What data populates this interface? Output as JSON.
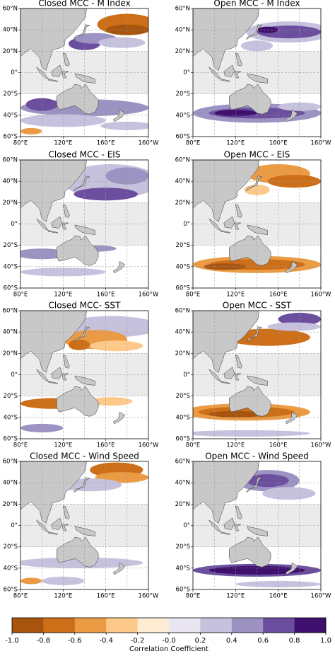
{
  "panels": [
    {
      "title": "Closed MCC - M Index"
    },
    {
      "title": "Open MCC - M Index"
    },
    {
      "title": "Closed MCC - EIS"
    },
    {
      "title": "Open MCC - EIS"
    },
    {
      "title": "Closed MCC- SST"
    },
    {
      "title": "Open MCC - SST"
    },
    {
      "title": "Closed MCC - Wind Speed"
    },
    {
      "title": "Open MCC - Wind Speed"
    }
  ],
  "map_axes": {
    "lat_labels": [
      "60°N",
      "40°N",
      "20°N",
      "0°",
      "20°S",
      "40°S",
      "60°S"
    ],
    "lon_labels": [
      "80°E",
      "120°E",
      "160°E",
      "160°W"
    ]
  },
  "colorbar": {
    "label": "Correlation Coefficient",
    "colors": [
      "#a6540e",
      "#cd6f18",
      "#eb9b44",
      "#fcc98a",
      "#fdebd2",
      "#e9e6f2",
      "#c6c2de",
      "#9d93c3",
      "#6c4e9f",
      "#3f0f6e"
    ],
    "lim": [
      -1,
      1
    ],
    "ticks": [
      {
        "value": -1,
        "label": "-1.0"
      },
      -0.8,
      -0.6,
      -0.4,
      -0.2,
      {
        "value": 0,
        "label": "-0.0"
      },
      0.2,
      0.4,
      0.6,
      0.8,
      {
        "value": 1,
        "label": "1.0"
      }
    ]
  }
}
